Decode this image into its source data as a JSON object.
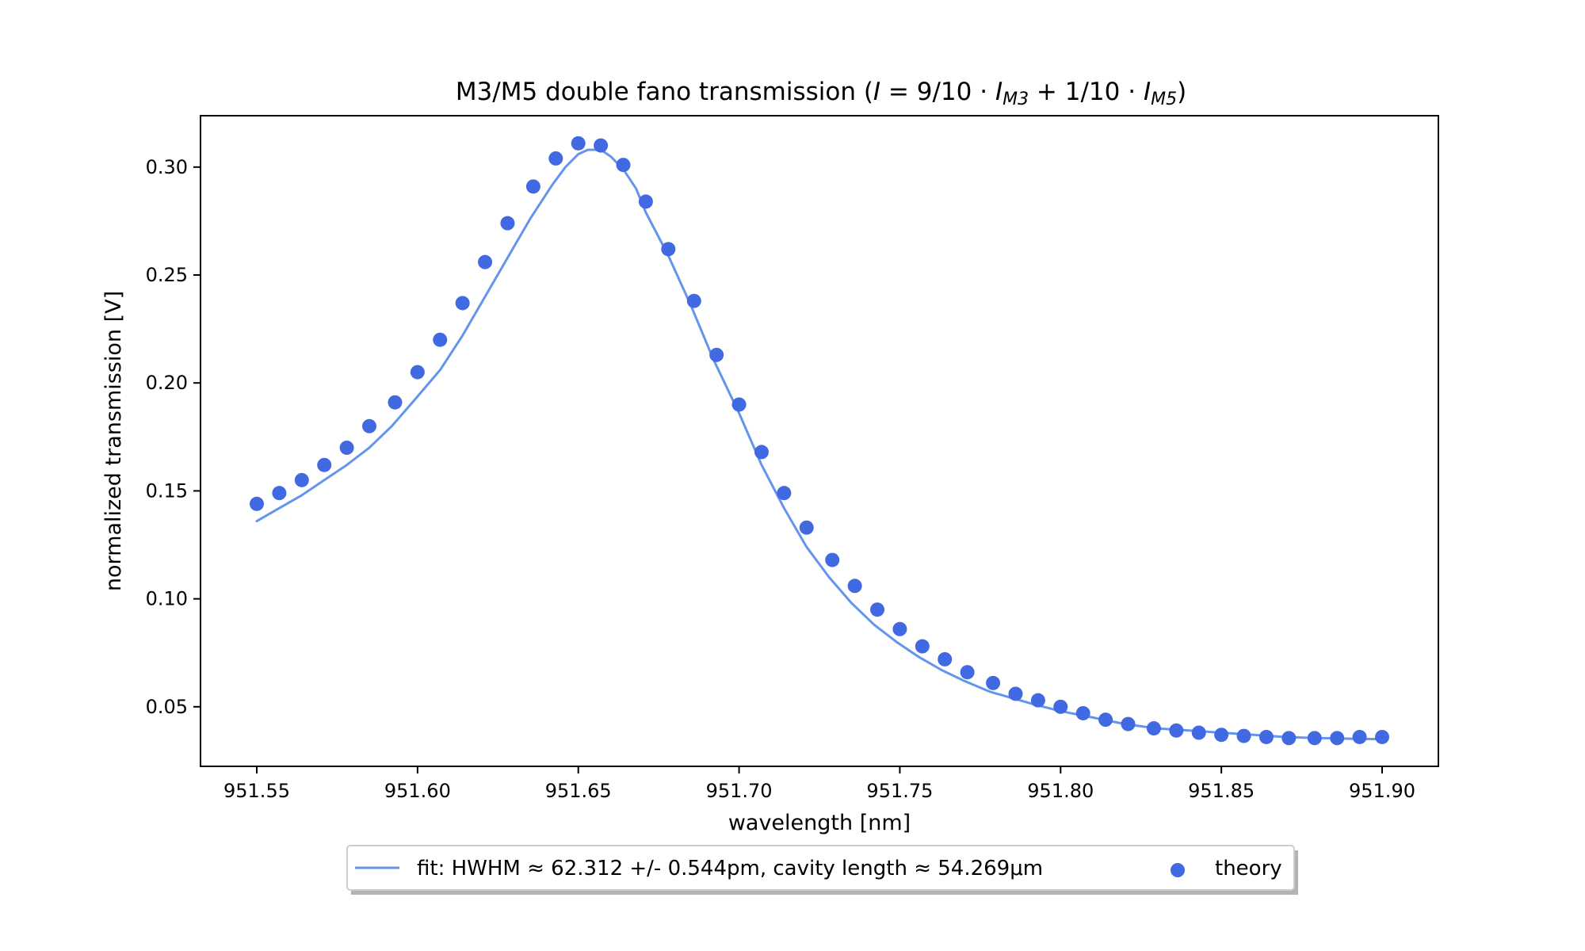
{
  "chart_data": {
    "type": "line",
    "title": {
      "main": "M3/M5 double fano transmission (",
      "formula": [
        {
          "t": "I",
          "i": true
        },
        {
          "t": " = 9/10 · "
        },
        {
          "t": "I",
          "i": true
        },
        {
          "t": "M3",
          "i": true,
          "sub": true
        },
        {
          "t": " + 1/10 · "
        },
        {
          "t": "I",
          "i": true
        },
        {
          "t": "M5",
          "i": true,
          "sub": true
        },
        {
          "t": ")"
        }
      ]
    },
    "xlabel": "wavelength [nm]",
    "ylabel": "normalized transmission [V]",
    "xlim": [
      951.5325,
      951.9175
    ],
    "ylim": [
      0.0224,
      0.3238
    ],
    "xticks": [
      951.55,
      951.6,
      951.65,
      951.7,
      951.75,
      951.8,
      951.85,
      951.9
    ],
    "xtick_labels": [
      "951.55",
      "951.60",
      "951.65",
      "951.70",
      "951.75",
      "951.80",
      "951.85",
      "951.90"
    ],
    "yticks": [
      0.05,
      0.1,
      0.15,
      0.2,
      0.25,
      0.3
    ],
    "ytick_labels": [
      "0.05",
      "0.10",
      "0.15",
      "0.20",
      "0.25",
      "0.30"
    ],
    "grid": false,
    "legend_position": "below plot, centered",
    "series": [
      {
        "name": "fit: HWHM  ≈  62.312 +/- 0.544pm, cavity length  ≈  54.269μm",
        "kind": "line",
        "color": "#6495ED",
        "x": [
          951.55,
          951.557,
          951.564,
          951.571,
          951.578,
          951.585,
          951.592,
          951.599,
          951.607,
          951.614,
          951.621,
          951.628,
          951.635,
          951.642,
          951.646,
          951.65,
          951.653,
          951.657,
          951.66,
          951.664,
          951.668,
          951.671,
          951.678,
          951.685,
          951.692,
          951.7,
          951.707,
          951.714,
          951.721,
          951.728,
          951.735,
          951.742,
          951.749,
          951.756,
          951.763,
          951.77,
          951.778,
          951.785,
          951.792,
          951.8,
          951.81,
          951.82,
          951.83,
          951.84,
          951.85,
          951.86,
          951.87,
          951.88,
          951.89,
          951.9
        ],
        "y": [
          0.136,
          0.142,
          0.148,
          0.155,
          0.162,
          0.17,
          0.18,
          0.192,
          0.206,
          0.222,
          0.24,
          0.258,
          0.276,
          0.292,
          0.3,
          0.306,
          0.308,
          0.308,
          0.305,
          0.299,
          0.29,
          0.279,
          0.259,
          0.236,
          0.211,
          0.186,
          0.162,
          0.142,
          0.124,
          0.11,
          0.098,
          0.088,
          0.08,
          0.073,
          0.067,
          0.062,
          0.057,
          0.054,
          0.051,
          0.048,
          0.045,
          0.042,
          0.04,
          0.039,
          0.038,
          0.037,
          0.036,
          0.0355,
          0.0352,
          0.035
        ]
      },
      {
        "name": "theory",
        "kind": "scatter",
        "color": "#4169E1",
        "x": [
          951.55,
          951.557,
          951.564,
          951.571,
          951.578,
          951.585,
          951.593,
          951.6,
          951.607,
          951.614,
          951.621,
          951.628,
          951.636,
          951.643,
          951.65,
          951.657,
          951.664,
          951.671,
          951.678,
          951.686,
          951.693,
          951.7,
          951.707,
          951.714,
          951.721,
          951.729,
          951.736,
          951.743,
          951.75,
          951.757,
          951.764,
          951.771,
          951.779,
          951.786,
          951.793,
          951.8,
          951.807,
          951.814,
          951.821,
          951.829,
          951.836,
          951.843,
          951.85,
          951.857,
          951.864,
          951.871,
          951.879,
          951.886,
          951.893,
          951.9
        ],
        "y": [
          0.144,
          0.149,
          0.155,
          0.162,
          0.17,
          0.18,
          0.191,
          0.205,
          0.22,
          0.237,
          0.256,
          0.274,
          0.291,
          0.304,
          0.311,
          0.31,
          0.301,
          0.284,
          0.262,
          0.238,
          0.213,
          0.19,
          0.168,
          0.149,
          0.133,
          0.118,
          0.106,
          0.095,
          0.086,
          0.078,
          0.072,
          0.066,
          0.061,
          0.056,
          0.053,
          0.05,
          0.047,
          0.044,
          0.042,
          0.04,
          0.039,
          0.038,
          0.037,
          0.0365,
          0.036,
          0.0355,
          0.0355,
          0.0355,
          0.036,
          0.036
        ]
      }
    ]
  }
}
